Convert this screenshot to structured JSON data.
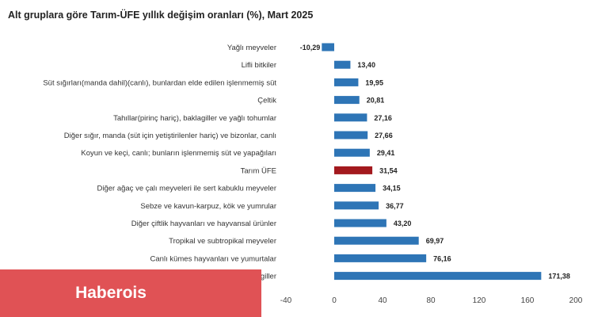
{
  "title": "Alt gruplara göre Tarım-ÜFE yıllık değişim oranları (%), Mart 2025",
  "watermark": "Haberois",
  "colors": {
    "bar": "#2e75b6",
    "highlight": "#a3191e"
  },
  "chart_data": {
    "type": "bar",
    "orientation": "horizontal",
    "title": "Alt gruplara göre Tarım-ÜFE yıllık değişim oranları (%), Mart 2025",
    "categories": [
      "Yağlı meyveler",
      "Lifli bitkiler",
      "Süt sığırları(manda dahil)(canlı), bunlardan elde edilen işlenmemiş süt",
      "Çeltik",
      "Tahıllar(pirinç hariç), baklagiller ve yağlı tohumlar",
      "Diğer sığır, manda (süt için yetiştirilenler hariç) ve bizonlar, canlı",
      "Koyun ve keçi, canlı; bunların işlenmemiş süt ve yapağıları",
      "Tarım ÜFE",
      "Diğer ağaç ve çalı meyveleri ile sert kabuklu meyveler",
      "Sebze ve kavun-karpuz, kök ve yumrular",
      "Diğer çiftlik hayvanları ve hayvansal ürünler",
      "Tropikal ve subtropikal meyveler",
      "Canlı kümes hayvanları ve yumurtalar",
      "Turunçgiller"
    ],
    "values": [
      -10.29,
      13.4,
      19.95,
      20.81,
      27.16,
      27.66,
      29.41,
      31.54,
      34.15,
      36.77,
      43.2,
      69.97,
      76.16,
      171.38
    ],
    "value_labels": [
      "-10,29",
      "13,40",
      "19,95",
      "20,81",
      "27,16",
      "27,66",
      "29,41",
      "31,54",
      "34,15",
      "36,77",
      "43,20",
      "69,97",
      "76,16",
      "171,38"
    ],
    "highlight": "Tarım ÜFE",
    "xlim": [
      -40,
      200
    ],
    "xticks": [
      -40,
      0,
      40,
      80,
      120,
      160,
      200
    ],
    "grid": false,
    "legend": "none"
  }
}
